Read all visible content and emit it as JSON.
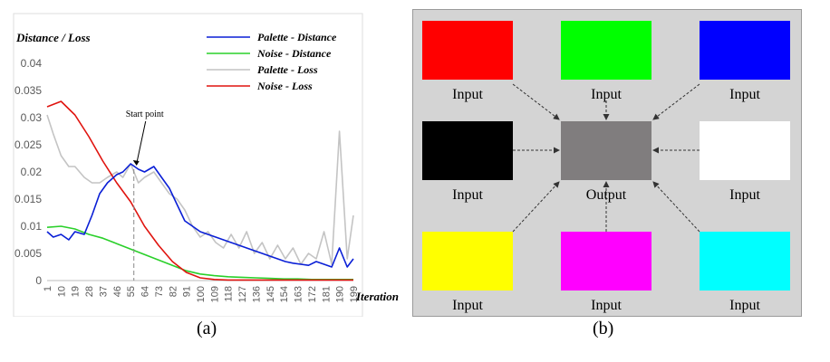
{
  "captions": {
    "a": "(a)",
    "b": "(b)"
  },
  "chart_data": {
    "type": "line",
    "ylabel": "Distance / Loss",
    "xlabel": "Iteration",
    "ylim": [
      0,
      0.04
    ],
    "yticks": [
      "0",
      "0.005",
      "0.01",
      "0.015",
      "0.02",
      "0.025",
      "0.03",
      "0.035",
      "0.04"
    ],
    "xticks": [
      "1",
      "10",
      "19",
      "28",
      "37",
      "46",
      "55",
      "64",
      "73",
      "82",
      "91",
      "100",
      "109",
      "118",
      "127",
      "136",
      "145",
      "154",
      "163",
      "172",
      "181",
      "190",
      "199"
    ],
    "grid": false,
    "legend_position": "top-right",
    "annotation": {
      "text": "Start point",
      "x": 60,
      "y": 0.0205
    },
    "series": [
      {
        "name": "Palette - Distance",
        "color": "#0a1fd6",
        "x": [
          1,
          5,
          10,
          15,
          19,
          25,
          30,
          35,
          40,
          46,
          50,
          55,
          60,
          64,
          70,
          75,
          80,
          85,
          90,
          95,
          100,
          105,
          110,
          115,
          120,
          125,
          130,
          135,
          140,
          145,
          150,
          155,
          160,
          165,
          170,
          175,
          180,
          185,
          190,
          195,
          199
        ],
        "y": [
          0.009,
          0.008,
          0.0085,
          0.0075,
          0.009,
          0.0085,
          0.012,
          0.016,
          0.018,
          0.0195,
          0.02,
          0.0215,
          0.0205,
          0.02,
          0.021,
          0.019,
          0.017,
          0.014,
          0.011,
          0.01,
          0.009,
          0.0085,
          0.008,
          0.0075,
          0.007,
          0.0065,
          0.006,
          0.0055,
          0.005,
          0.0045,
          0.004,
          0.0035,
          0.0032,
          0.003,
          0.0028,
          0.0035,
          0.003,
          0.0025,
          0.006,
          0.0025,
          0.004
        ]
      },
      {
        "name": "Noise - Distance",
        "color": "#2ad02a",
        "x": [
          1,
          10,
          19,
          28,
          37,
          46,
          55,
          64,
          73,
          82,
          91,
          100,
          109,
          118,
          127,
          136,
          145,
          154,
          163,
          172,
          181,
          190,
          199
        ],
        "y": [
          0.0098,
          0.01,
          0.0095,
          0.0085,
          0.0078,
          0.0068,
          0.0058,
          0.0048,
          0.0038,
          0.0028,
          0.0018,
          0.0012,
          0.0009,
          0.0007,
          0.0006,
          0.0005,
          0.0004,
          0.0003,
          0.0003,
          0.0002,
          0.0002,
          0.0002,
          0.0002
        ]
      },
      {
        "name": "Palette - Loss",
        "color": "#c4c4c4",
        "x": [
          1,
          5,
          10,
          15,
          19,
          25,
          30,
          35,
          40,
          46,
          50,
          55,
          60,
          64,
          70,
          75,
          80,
          85,
          90,
          95,
          100,
          105,
          110,
          115,
          120,
          125,
          130,
          135,
          140,
          145,
          150,
          155,
          160,
          165,
          170,
          175,
          180,
          185,
          190,
          195,
          199
        ],
        "y": [
          0.0305,
          0.027,
          0.023,
          0.021,
          0.021,
          0.019,
          0.018,
          0.018,
          0.019,
          0.02,
          0.019,
          0.0215,
          0.018,
          0.019,
          0.02,
          0.018,
          0.016,
          0.015,
          0.013,
          0.01,
          0.008,
          0.009,
          0.007,
          0.006,
          0.0085,
          0.006,
          0.009,
          0.005,
          0.007,
          0.004,
          0.0065,
          0.004,
          0.006,
          0.003,
          0.005,
          0.004,
          0.009,
          0.003,
          0.0275,
          0.004,
          0.012
        ]
      },
      {
        "name": "Noise - Loss",
        "color": "#e0140f",
        "x": [
          1,
          10,
          19,
          28,
          37,
          46,
          55,
          64,
          73,
          82,
          91,
          100,
          109,
          118,
          127,
          136,
          145,
          154,
          163,
          172,
          181,
          190,
          199
        ],
        "y": [
          0.032,
          0.033,
          0.0305,
          0.0265,
          0.022,
          0.018,
          0.0145,
          0.01,
          0.0065,
          0.0035,
          0.0015,
          0.0005,
          0.0002,
          0.0001,
          0.0001,
          0.0001,
          0.0001,
          0.0001,
          0.0001,
          0.0001,
          0.0001,
          0.0001,
          0.0001
        ]
      }
    ]
  },
  "diagram": {
    "nodes": [
      {
        "id": "top-left",
        "color": "#ff0000",
        "label": "Input"
      },
      {
        "id": "top-center",
        "color": "#00ff00",
        "label": "Input"
      },
      {
        "id": "top-right",
        "color": "#0000ff",
        "label": "Input"
      },
      {
        "id": "middle-left",
        "color": "#000000",
        "label": "Input"
      },
      {
        "id": "center",
        "color": "#807d7e",
        "label": "Output"
      },
      {
        "id": "middle-right",
        "color": "#ffffff",
        "label": "Input"
      },
      {
        "id": "bottom-left",
        "color": "#ffff00",
        "label": "Input"
      },
      {
        "id": "bottom-center",
        "color": "#ff00ff",
        "label": "Input"
      },
      {
        "id": "bottom-right",
        "color": "#00ffff",
        "label": "Input"
      }
    ]
  }
}
